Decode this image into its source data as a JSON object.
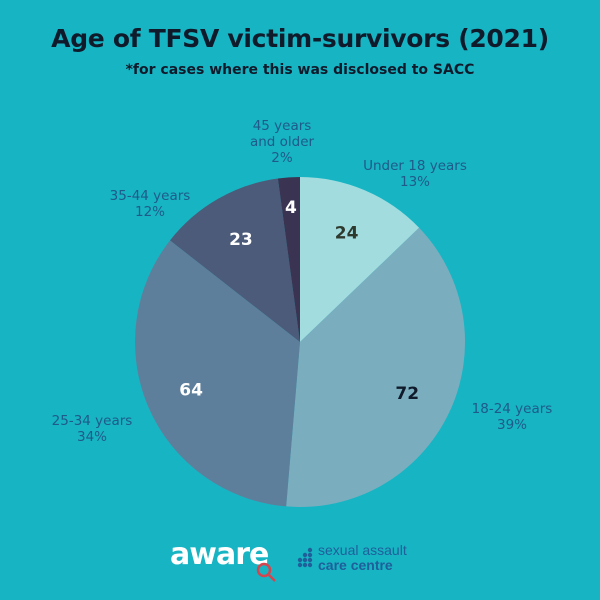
{
  "title": "Age of TFSV victim-survivors (2021)",
  "subtitle": "*for cases where this was disclosed to SACC",
  "chart_data": {
    "type": "pie",
    "title": "Age of TFSV victim-survivors (2021)",
    "subtitle": "*for cases where this was disclosed to SACC",
    "slices": [
      {
        "label": "Under 18 years",
        "value": 24,
        "percent": "13%",
        "color": "#a2dcdf",
        "value_color": "#2e3a2e"
      },
      {
        "label": "18-24 years",
        "value": 72,
        "percent": "39%",
        "color": "#7aaebf",
        "value_color": "#0f1a2b"
      },
      {
        "label": "25-34 years",
        "value": 64,
        "percent": "34%",
        "color": "#5e7f9b",
        "value_color": "#ffffff"
      },
      {
        "label": "35-44 years",
        "value": 23,
        "percent": "12%",
        "color": "#4b5b79",
        "value_color": "#ffffff"
      },
      {
        "label": "45 years and older",
        "value": 4,
        "percent": "2%",
        "color": "#3a3452",
        "value_color": "#ffffff"
      }
    ],
    "label_color": "#1f5a8a",
    "start": "12 o'clock",
    "direction": "clockwise"
  },
  "footer": {
    "aware_logo_text": "aware",
    "sacc_line1": "sexual assault",
    "sacc_line2": "care centre"
  },
  "colors": {
    "background": "#17b4c3",
    "title": "#0f1a2b",
    "aware_accent": "#d6454d",
    "sacc_blue": "#1f5f9a"
  }
}
